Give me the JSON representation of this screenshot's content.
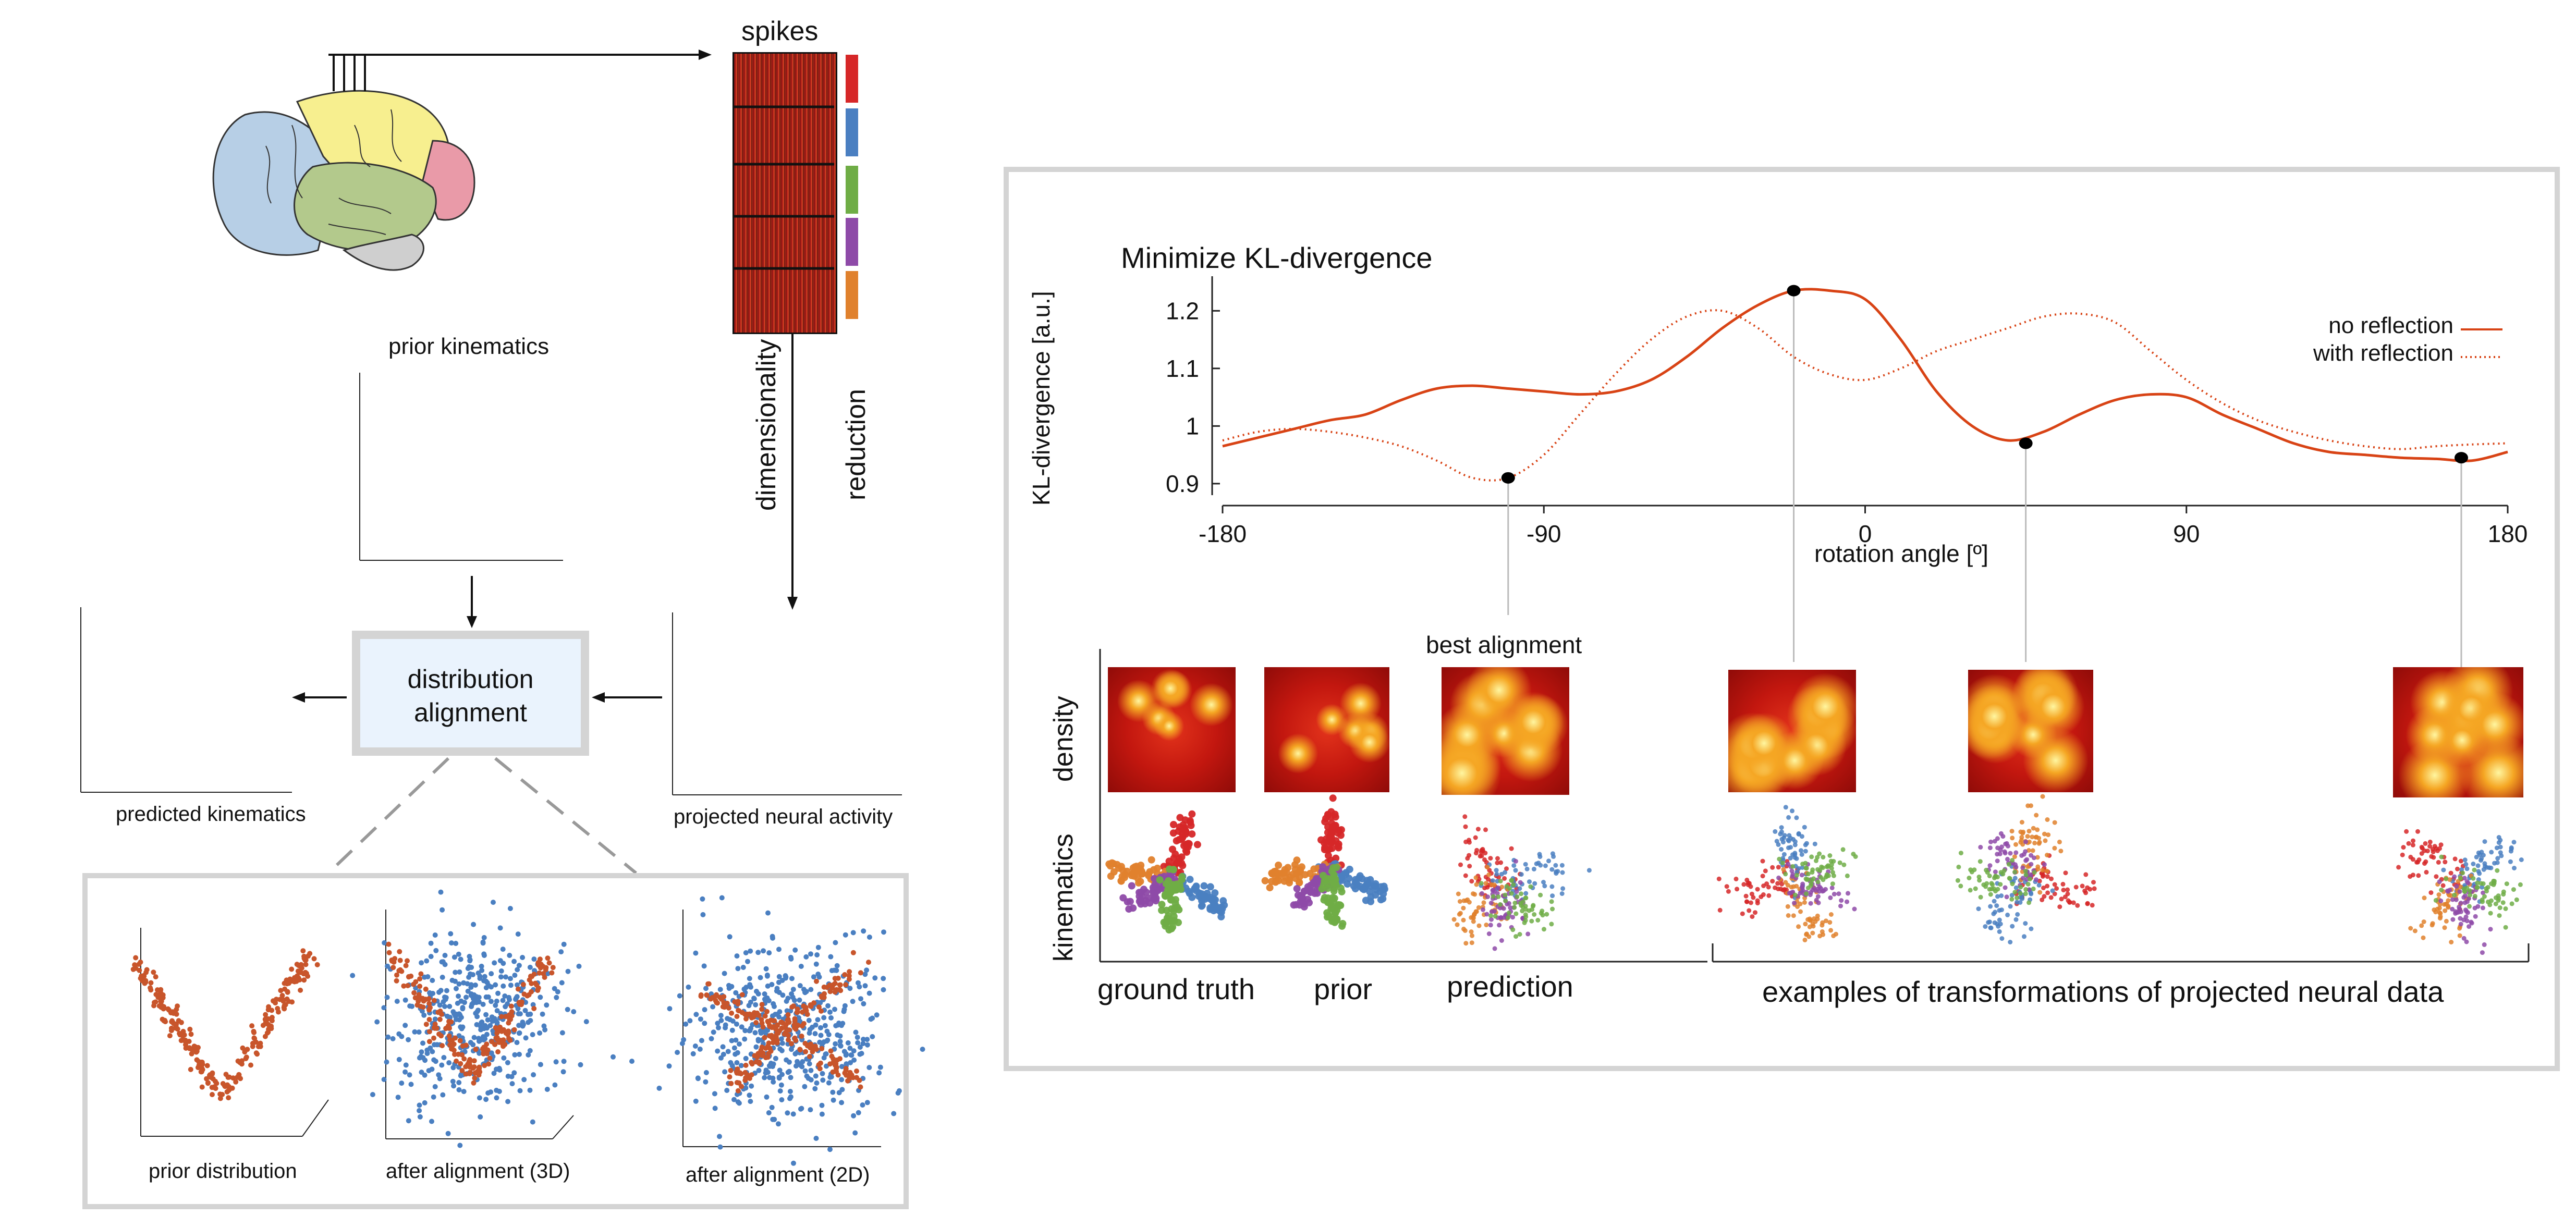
{
  "left": {
    "spikes_label": "spikes",
    "dim_reduction_label_1": "dimensionality",
    "dim_reduction_label_2": "reduction",
    "prior_kinematics_label": "prior kinematics",
    "distribution_alignment_line1": "distribution",
    "distribution_alignment_line2": "alignment",
    "predicted_kinematics_label": "predicted kinematics",
    "projected_neural_label": "projected neural activity",
    "bottom_labels": [
      "prior distribution",
      "after alignment (3D)",
      "after alignment (2D)"
    ],
    "spike_group_colors": [
      "#d62728",
      "#4a7fc1",
      "#6fad46",
      "#8e4aa8",
      "#e0812d"
    ]
  },
  "right": {
    "best_alignment_label": "best alignment",
    "row_labels": [
      "density",
      "kinematics"
    ],
    "column_labels": [
      "ground truth",
      "prior",
      "prediction"
    ],
    "examples_label": "examples of transformations of projected neural data"
  },
  "colors": {
    "curve": "#d84315",
    "red": "#d62728",
    "blue": "#4a7fc1",
    "green": "#6fad46",
    "purple": "#8e4aa8",
    "orange": "#e0812d",
    "prior_dist": "#c8552b"
  },
  "chart_data": {
    "type": "line",
    "title": "Minimize KL-divergence",
    "xlabel": "rotation angle [º]",
    "ylabel": "KL-divergence [a.u.]",
    "xlim": [
      -180,
      180
    ],
    "ylim": [
      0.88,
      1.26
    ],
    "xticks": [
      "-180",
      "-90",
      "0",
      "90",
      "180"
    ],
    "yticks": [
      "0.9",
      "1",
      "1.1",
      "1.2"
    ],
    "legend_position": "right",
    "series": [
      {
        "name": "no reflection",
        "style": "solid",
        "x": [
          -180,
          -170,
          -160,
          -150,
          -140,
          -130,
          -120,
          -110,
          -100,
          -90,
          -80,
          -70,
          -60,
          -50,
          -40,
          -30,
          -20,
          -10,
          0,
          10,
          20,
          30,
          40,
          50,
          60,
          70,
          80,
          90,
          100,
          110,
          120,
          130,
          140,
          150,
          160,
          170,
          180
        ],
        "y": [
          0.965,
          0.98,
          0.995,
          1.01,
          1.02,
          1.045,
          1.065,
          1.07,
          1.065,
          1.06,
          1.055,
          1.06,
          1.08,
          1.12,
          1.17,
          1.21,
          1.235,
          1.235,
          1.22,
          1.15,
          1.06,
          1.0,
          0.975,
          0.99,
          1.02,
          1.045,
          1.055,
          1.05,
          1.02,
          0.995,
          0.97,
          0.955,
          0.95,
          0.945,
          0.943,
          0.94,
          0.955
        ]
      },
      {
        "name": "with reflection",
        "style": "dotted",
        "x": [
          -180,
          -170,
          -160,
          -150,
          -140,
          -130,
          -120,
          -110,
          -100,
          -90,
          -80,
          -70,
          -60,
          -50,
          -40,
          -30,
          -20,
          -10,
          0,
          10,
          20,
          30,
          40,
          50,
          60,
          70,
          80,
          90,
          100,
          110,
          120,
          130,
          140,
          150,
          160,
          170,
          180
        ],
        "y": [
          0.975,
          0.99,
          0.995,
          0.99,
          0.98,
          0.965,
          0.94,
          0.91,
          0.91,
          0.95,
          1.02,
          1.09,
          1.15,
          1.19,
          1.2,
          1.17,
          1.12,
          1.09,
          1.08,
          1.1,
          1.13,
          1.15,
          1.17,
          1.19,
          1.195,
          1.18,
          1.13,
          1.08,
          1.04,
          1.01,
          0.99,
          0.975,
          0.965,
          0.96,
          0.965,
          0.968,
          0.97
        ]
      }
    ],
    "markers": [
      {
        "x": -100,
        "y": 0.91
      },
      {
        "x": -20,
        "y": 1.235
      },
      {
        "x": 45,
        "y": 0.97
      },
      {
        "x": 167,
        "y": 0.945
      }
    ]
  }
}
